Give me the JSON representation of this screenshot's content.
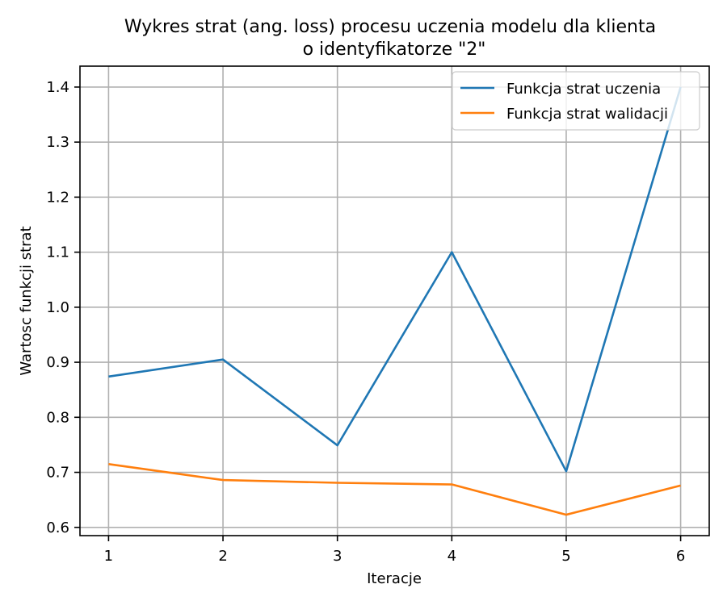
{
  "chart_data": {
    "type": "line",
    "title": "Wykres strat (ang. loss) procesu uczenia modelu dla klienta",
    "title_line2": "o identyfikatorze \"2\"",
    "xlabel": "Iteracje",
    "ylabel": "Wartosc funkcji strat",
    "x": [
      1,
      2,
      3,
      4,
      5,
      6
    ],
    "x_ticks": [
      "1",
      "2",
      "3",
      "4",
      "5",
      "6"
    ],
    "xlim": [
      0.75,
      6.25
    ],
    "y_ticks": [
      "0.6",
      "0.7",
      "0.8",
      "0.9",
      "1.0",
      "1.1",
      "1.2",
      "1.3",
      "1.4"
    ],
    "ylim": [
      0.585,
      1.438
    ],
    "grid": true,
    "legend_position": "top-right",
    "series": [
      {
        "name": "Funkcja strat uczenia",
        "color": "#1f77b4",
        "values": [
          0.874,
          0.905,
          0.749,
          1.1,
          0.702,
          1.4
        ]
      },
      {
        "name": "Funkcja strat walidacji",
        "color": "#ff7f0e",
        "values": [
          0.715,
          0.686,
          0.681,
          0.678,
          0.623,
          0.676
        ]
      }
    ]
  }
}
